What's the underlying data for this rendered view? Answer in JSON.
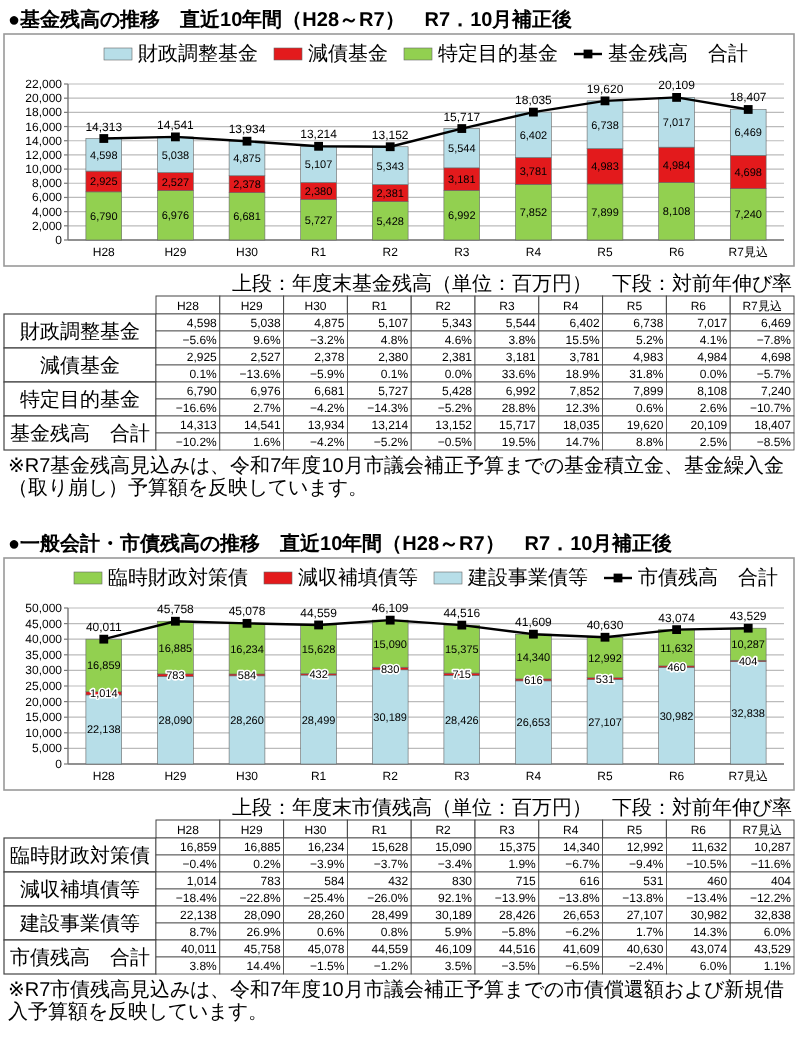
{
  "chart_data": [
    {
      "type": "bar",
      "title": "●基金残高の推移　直近10年間（H28～R7）　R7．10月補正後",
      "stacked": true,
      "legend": "top",
      "grid": "y",
      "marker": "square",
      "categories": [
        "H28",
        "H29",
        "H30",
        "R1",
        "R2",
        "R3",
        "R4",
        "R5",
        "R6",
        "R7見込"
      ],
      "ylim": [
        0,
        22000
      ],
      "yticks": [
        0,
        {
          "value": 2000,
          "label": "2,000"
        },
        {
          "value": 4000,
          "label": "4,000"
        },
        {
          "value": 6000,
          "label": "6,000"
        },
        {
          "value": 8000,
          "label": "8,000"
        },
        {
          "value": 10000,
          "label": "10,000"
        },
        {
          "value": 12000,
          "label": "12,000"
        },
        {
          "value": 14000,
          "label": "14,000"
        },
        {
          "value": 16000,
          "label": "16,000"
        },
        {
          "value": 18000,
          "label": "18,000"
        },
        {
          "value": 20000,
          "label": "20,000"
        },
        {
          "value": 22000,
          "label": "22,000"
        }
      ],
      "series": [
        {
          "name": "特定目的基金",
          "color": "#92d050",
          "values": [
            6790,
            6976,
            6681,
            5727,
            5428,
            6992,
            7852,
            7899,
            8108,
            7240
          ],
          "value_labels": [
            "6,790",
            "6,976",
            "6,681",
            "5,727",
            "5,428",
            "6,992",
            "7,852",
            "7,899",
            "8,108",
            "7,240"
          ]
        },
        {
          "name": "減債基金",
          "color": "#e31a1c",
          "values": [
            2925,
            2527,
            2378,
            2380,
            2381,
            3181,
            3781,
            4983,
            4984,
            4698
          ],
          "value_labels": [
            "2,925",
            "2,527",
            "2,378",
            "2,380",
            "2,381",
            "3,181",
            "3,781",
            "4,983",
            "4,984",
            "4,698"
          ]
        },
        {
          "name": "財政調整基金",
          "color": "#b7dee8",
          "values": [
            4598,
            5038,
            4875,
            5107,
            5343,
            5544,
            6402,
            6738,
            7017,
            6469
          ],
          "value_labels": [
            "4,598",
            "5,038",
            "4,875",
            "5,107",
            "5,343",
            "5,544",
            "6,402",
            "6,738",
            "7,017",
            "6,469"
          ]
        },
        {
          "name": "基金残高　合計",
          "type": "line",
          "color": "#000000",
          "values": [
            14313,
            14541,
            13934,
            13214,
            13152,
            15717,
            18035,
            19620,
            20109,
            18407
          ],
          "value_labels": [
            "14,313",
            "14,541",
            "13,934",
            "13,214",
            "13,152",
            "15,717",
            "18,035",
            "19,620",
            "20,109",
            "18,407"
          ]
        }
      ],
      "annotations": [
        "上段：年度末基金残高（単位：百万円）　下段：対前年伸び率",
        "※R7基金残高見込みは、令和7年度10月市議会補正予算までの基金積立金、基金繰入金（取り崩し）予算額を反映しています。",
        "−5.6%",
        "9.6%",
        "−3.2%",
        "4.8%",
        "4.6%",
        "3.8%",
        "15.5%",
        "5.2%",
        "4.1%",
        "−7.8%",
        "0.1%",
        "−13.6%",
        "−5.9%",
        "0.1%",
        "0.0%",
        "33.6%",
        "18.9%",
        "31.8%",
        "0.0%",
        "−5.7%",
        "−16.6%",
        "2.7%",
        "−4.2%",
        "−14.3%",
        "−5.2%",
        "28.8%",
        "12.3%",
        "0.6%",
        "2.6%",
        "−10.7%",
        "−10.2%",
        "1.6%",
        "−4.2%",
        "−5.2%",
        "−0.5%",
        "19.5%",
        "14.7%",
        "8.8%",
        "2.5%",
        "−8.5%"
      ]
    },
    {
      "type": "bar",
      "title": "●一般会計・市債残高の推移　直近10年間（H28～R7）　R7．10月補正後",
      "stacked": true,
      "legend": "top",
      "grid": "y",
      "marker": "square",
      "categories": [
        "H28",
        "H29",
        "H30",
        "R1",
        "R2",
        "R3",
        "R4",
        "R5",
        "R6",
        "R7見込"
      ],
      "ylim": [
        0,
        50000
      ],
      "yticks": [
        0,
        {
          "value": 5000,
          "label": "5,000"
        },
        {
          "value": 10000,
          "label": "10,000"
        },
        {
          "value": 15000,
          "label": "15,000"
        },
        {
          "value": 20000,
          "label": "20,000"
        },
        {
          "value": 25000,
          "label": "25,000"
        },
        {
          "value": 30000,
          "label": "30,000"
        },
        {
          "value": 35000,
          "label": "35,000"
        },
        {
          "value": 40000,
          "label": "40,000"
        },
        {
          "value": 45000,
          "label": "45,000"
        },
        {
          "value": 50000,
          "label": "50,000"
        }
      ],
      "series": [
        {
          "name": "建設事業債等",
          "color": "#b7dee8",
          "values": [
            22138,
            28090,
            28260,
            28499,
            30189,
            28426,
            26653,
            27107,
            30982,
            32838
          ],
          "value_labels": [
            "22,138",
            "28,090",
            "28,260",
            "28,499",
            "30,189",
            "28,426",
            "26,653",
            "27,107",
            "30,982",
            "32,838"
          ]
        },
        {
          "name": "減収補填債等",
          "color": "#e31a1c",
          "values": [
            1014,
            783,
            584,
            432,
            830,
            715,
            616,
            531,
            460,
            404
          ],
          "value_labels": [
            "1,014",
            "783",
            "584",
            "432",
            "830",
            "715",
            "616",
            "531",
            "460",
            "404"
          ]
        },
        {
          "name": "臨時財政対策債",
          "color": "#92d050",
          "values": [
            16859,
            16885,
            16234,
            15628,
            15090,
            15375,
            14340,
            12992,
            11632,
            10287
          ],
          "value_labels": [
            "16,859",
            "16,885",
            "16,234",
            "15,628",
            "15,090",
            "15,375",
            "14,340",
            "12,992",
            "11,632",
            "10,287"
          ]
        },
        {
          "name": "市債残高　合計",
          "type": "line",
          "color": "#000000",
          "values": [
            40011,
            45758,
            45078,
            44559,
            46109,
            44516,
            41609,
            40630,
            43074,
            43529
          ],
          "value_labels": [
            "40,011",
            "45,758",
            "45,078",
            "44,559",
            "46,109",
            "44,516",
            "41,609",
            "40,630",
            "43,074",
            "43,529"
          ]
        }
      ],
      "annotations": [
        "上段：年度末市債残高（単位：百万円）　下段：対前年伸び率",
        "※R7市債残高見込みは、令和7年度10月市議会補正予算までの市債償還額および新規借入予算額を反映しています。",
        "−0.4%",
        "0.2%",
        "−3.9%",
        "−3.7%",
        "−3.4%",
        "1.9%",
        "−6.7%",
        "−9.4%",
        "−10.5%",
        "−11.6%",
        "−18.4%",
        "−22.8%",
        "−25.4%",
        "−26.0%",
        "92.1%",
        "−13.9%",
        "−13.8%",
        "−13.8%",
        "−13.4%",
        "−12.2%",
        "8.7%",
        "26.9%",
        "0.6%",
        "0.8%",
        "5.9%",
        "−5.8%",
        "−6.2%",
        "1.7%",
        "14.3%",
        "6.0%",
        "3.8%",
        "14.4%",
        "−1.5%",
        "−1.2%",
        "3.5%",
        "−3.5%",
        "−6.5%",
        "−2.4%",
        "6.0%",
        "1.1%"
      ]
    }
  ]
}
